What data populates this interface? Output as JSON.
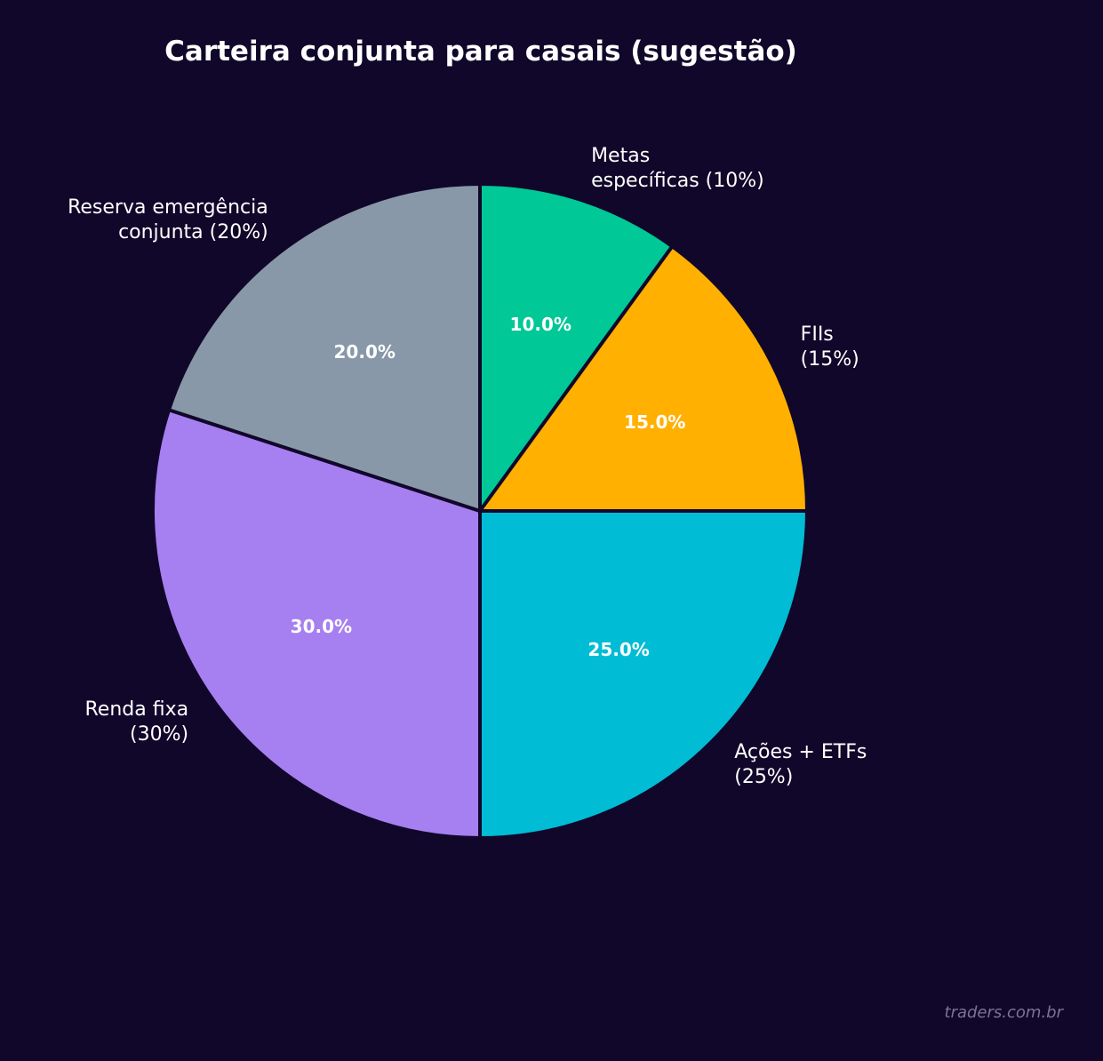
{
  "chart_data": {
    "type": "pie",
    "title": "Carteira conjunta para casais (sugestão)",
    "categories": [
      "Metas específicas",
      "FIIs",
      "Ações + ETFs",
      "Renda fixa",
      "Reserva emergência conjunta"
    ],
    "values": [
      10,
      15,
      25,
      30,
      20
    ],
    "labels": [
      "Metas\nespecíficas (10%)",
      "FIIs\n(15%)",
      "Ações + ETFs\n(25%)",
      "Renda fixa\n(30%)",
      "Reserva emergência\nconjunta (20%)"
    ],
    "autopct": [
      "10.0%",
      "15.0%",
      "25.0%",
      "30.0%",
      "20.0%"
    ],
    "colors": [
      "#00c896",
      "#ffb000",
      "#00bcd4",
      "#a67ff0",
      "#8898a8"
    ],
    "start_angle": 90,
    "direction": "clockwise",
    "edge_color": "#11072a"
  },
  "title": "Carteira conjunta para casais (sugestão)",
  "watermark": "traders.com.br",
  "background": "#11072a"
}
